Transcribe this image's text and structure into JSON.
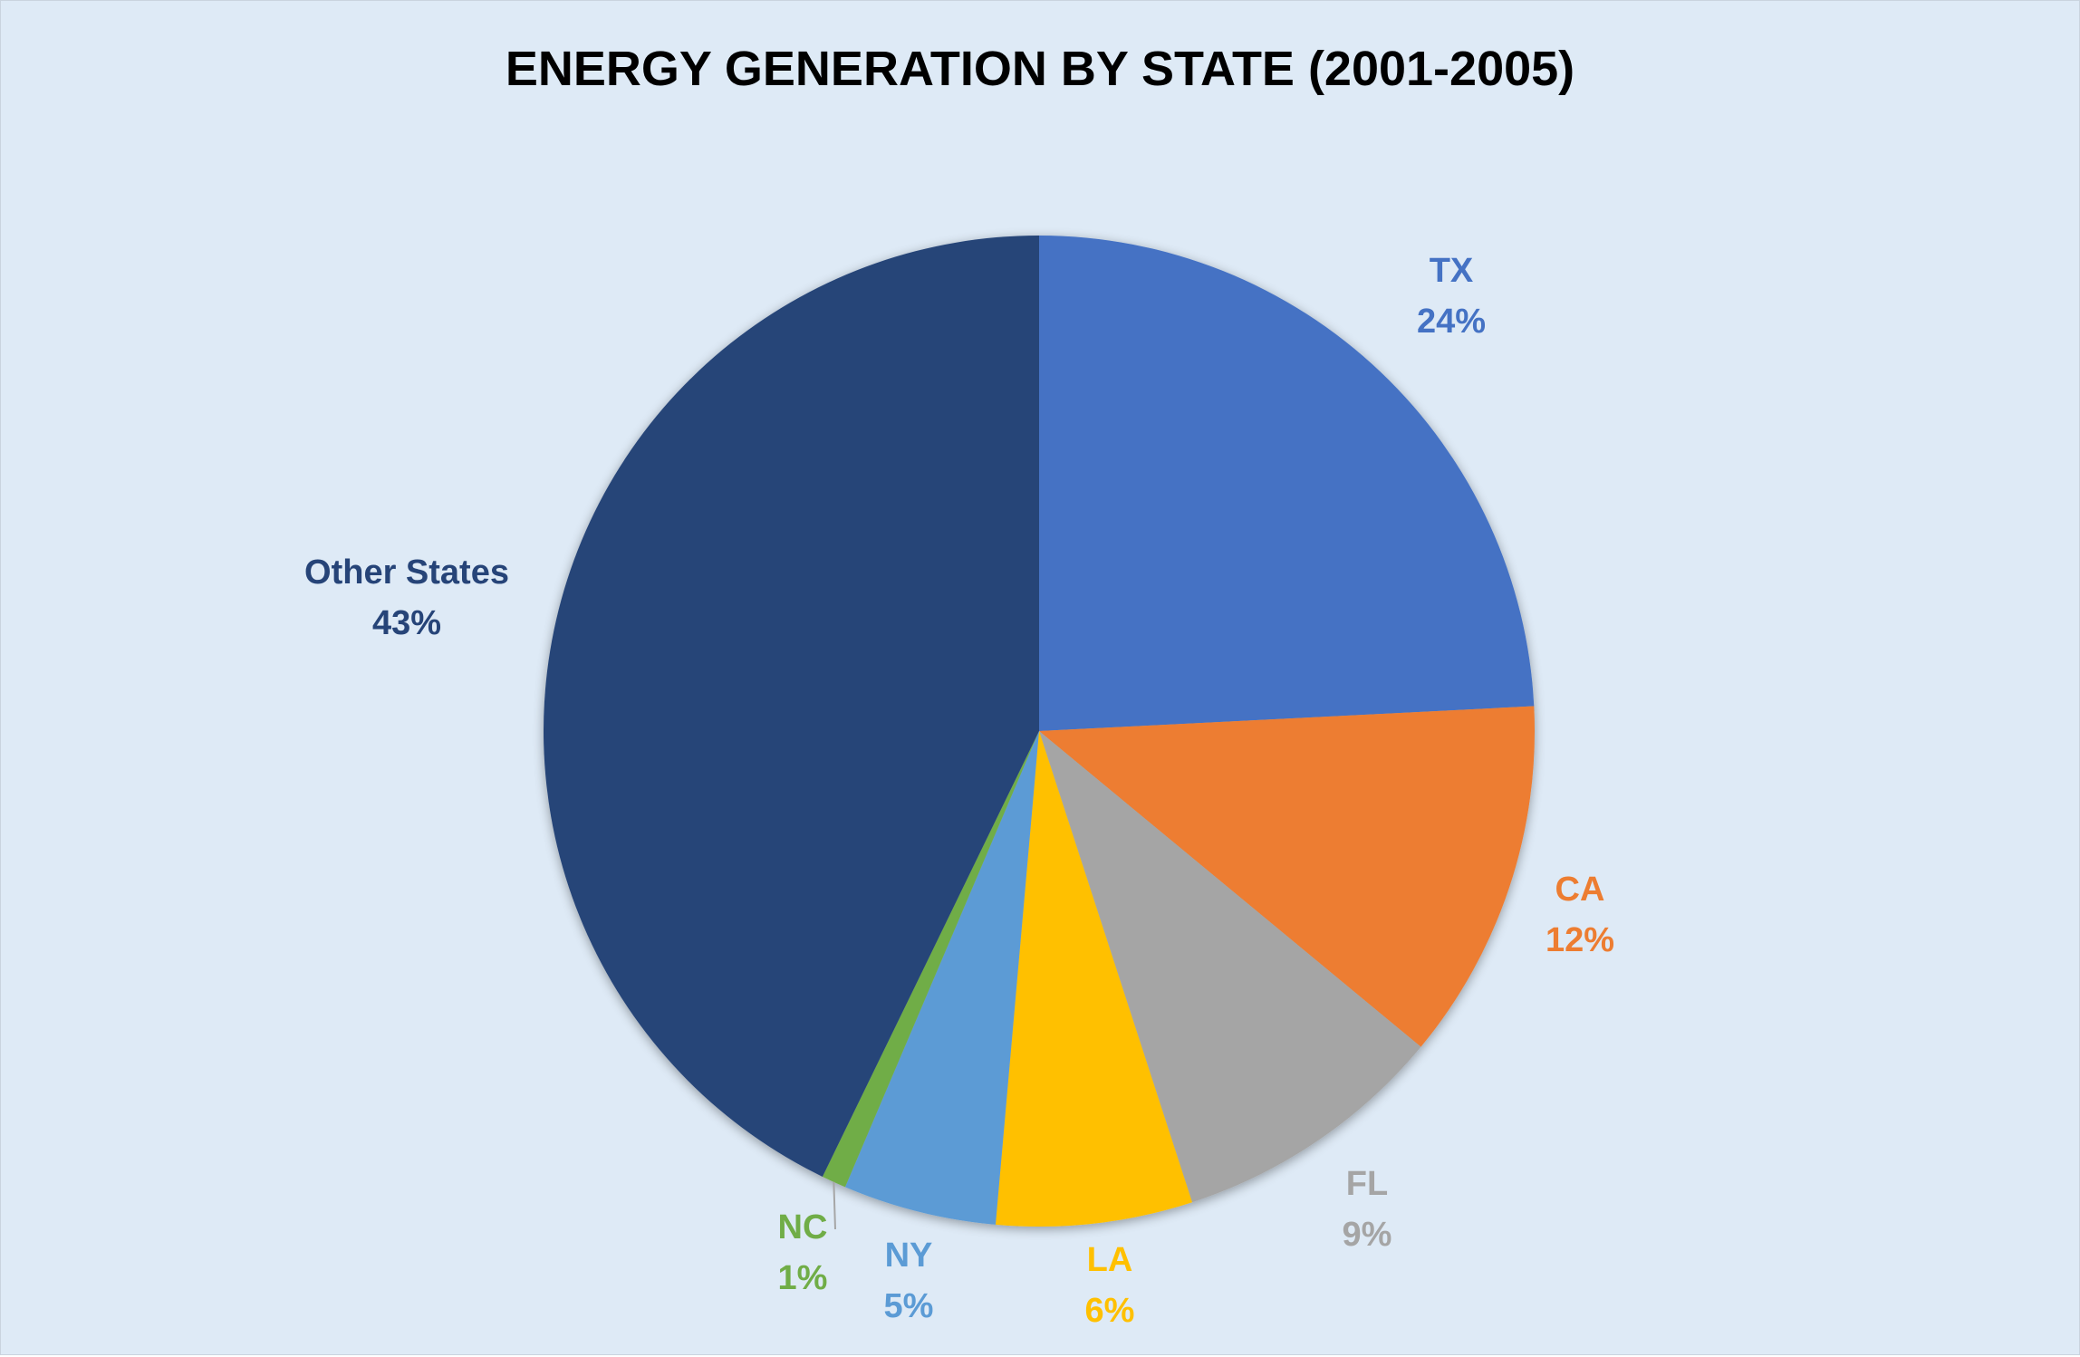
{
  "chart_data": {
    "type": "pie",
    "title": "ENERGY GENERATION BY STATE (2001-2005)",
    "slices": [
      {
        "label": "TX",
        "percent_label": "24%",
        "value": 24.2,
        "color": "#4472c4"
      },
      {
        "label": "CA",
        "percent_label": "12%",
        "value": 11.8,
        "color": "#ed7d31"
      },
      {
        "label": "FL",
        "percent_label": "9%",
        "value": 9.0,
        "color": "#a5a5a5"
      },
      {
        "label": "LA",
        "percent_label": "6%",
        "value": 6.4,
        "color": "#ffc000"
      },
      {
        "label": "NY",
        "percent_label": "5%",
        "value": 5.0,
        "color": "#5b9bd5"
      },
      {
        "label": "NC",
        "percent_label": "1%",
        "value": 0.8,
        "color": "#70ad47"
      },
      {
        "label": "Other States",
        "percent_label": "43%",
        "value": 42.8,
        "color": "#264478"
      }
    ],
    "start_angle": "12 o'clock",
    "direction": "clockwise",
    "legend": "none",
    "data_labels": "outside, category name and percentage"
  }
}
